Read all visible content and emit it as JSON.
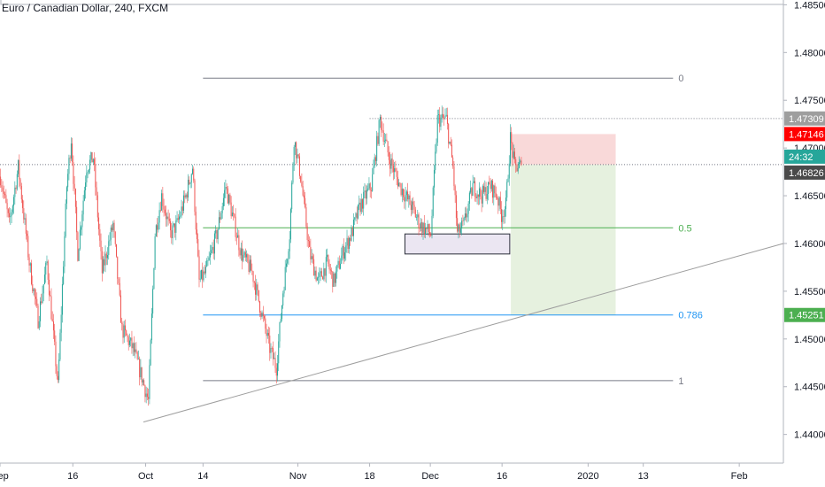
{
  "header": {
    "symbol_title": "Euro / Canadian Dollar, 240, FXCM"
  },
  "colors": {
    "up": "#26a69a",
    "down": "#ef5350",
    "fib_0": "#787b86",
    "fib_05": "#4caf50",
    "fib_0786": "#2196f3",
    "fib_1": "#787b86",
    "trendline": "#9e9e9e",
    "stop_zone": "#f8d0d0",
    "target_zone": "#e3f0dc",
    "tag_gray": "#9e9e9e",
    "tag_red": "#ff0000",
    "tag_teal": "#26a69a",
    "tag_dark": "#4a4a4a",
    "tag_green": "#4caf50"
  },
  "chart_data": {
    "type": "candlestick",
    "ylim": [
      1.437,
      1.4855
    ],
    "y_ticks": [
      "1.48500",
      "1.48000",
      "1.47500",
      "1.47000",
      "1.46500",
      "1.46000",
      "1.45500",
      "1.45000",
      "1.44500",
      "1.44000"
    ],
    "y_tick_values": [
      1.485,
      1.48,
      1.475,
      1.47,
      1.465,
      1.46,
      1.455,
      1.45,
      1.445,
      1.44
    ],
    "x_ticks": [
      "Sep",
      "16",
      "Oct",
      "14",
      "Nov",
      "18",
      "Dec",
      "16",
      "2020",
      "13",
      "Feb"
    ],
    "x_tick_bars": [
      0,
      66,
      132,
      184,
      270,
      335,
      390,
      455,
      533,
      583,
      670
    ],
    "bar_count": 710,
    "price_path": [
      [
        0,
        1.467
      ],
      [
        8,
        1.462
      ],
      [
        16,
        1.468
      ],
      [
        26,
        1.458
      ],
      [
        34,
        1.452
      ],
      [
        42,
        1.458
      ],
      [
        52,
        1.445
      ],
      [
        60,
        1.466
      ],
      [
        64,
        1.471
      ],
      [
        70,
        1.459
      ],
      [
        78,
        1.468
      ],
      [
        84,
        1.469
      ],
      [
        92,
        1.457
      ],
      [
        102,
        1.462
      ],
      [
        110,
        1.451
      ],
      [
        120,
        1.449
      ],
      [
        128,
        1.446
      ],
      [
        134,
        1.4435
      ],
      [
        140,
        1.461
      ],
      [
        146,
        1.465
      ],
      [
        154,
        1.461
      ],
      [
        160,
        1.462
      ],
      [
        168,
        1.465
      ],
      [
        174,
        1.468
      ],
      [
        180,
        1.456
      ],
      [
        186,
        1.457
      ],
      [
        196,
        1.461
      ],
      [
        204,
        1.466
      ],
      [
        210,
        1.463
      ],
      [
        218,
        1.459
      ],
      [
        228,
        1.457
      ],
      [
        236,
        1.453
      ],
      [
        244,
        1.449
      ],
      [
        250,
        1.447
      ],
      [
        256,
        1.455
      ],
      [
        262,
        1.461
      ],
      [
        266,
        1.471
      ],
      [
        272,
        1.467
      ],
      [
        280,
        1.459
      ],
      [
        288,
        1.456
      ],
      [
        296,
        1.458
      ],
      [
        302,
        1.456
      ],
      [
        310,
        1.459
      ],
      [
        318,
        1.461
      ],
      [
        326,
        1.464
      ],
      [
        336,
        1.466
      ],
      [
        344,
        1.473
      ],
      [
        352,
        1.469
      ],
      [
        362,
        1.466
      ],
      [
        372,
        1.464
      ],
      [
        380,
        1.462
      ],
      [
        390,
        1.461
      ],
      [
        396,
        1.473
      ],
      [
        404,
        1.473
      ],
      [
        410,
        1.468
      ],
      [
        414,
        1.461
      ],
      [
        420,
        1.462
      ],
      [
        428,
        1.466
      ],
      [
        436,
        1.465
      ],
      [
        444,
        1.466
      ],
      [
        450,
        1.465
      ],
      [
        454,
        1.463
      ],
      [
        458,
        1.464
      ],
      [
        462,
        1.471
      ],
      [
        466,
        1.468
      ],
      [
        472,
        1.4682
      ]
    ],
    "last_price": 1.46826,
    "fibonacci": {
      "bar_start": 184,
      "bar_end": 610,
      "levels": [
        {
          "label": "0",
          "price": 1.47732
        },
        {
          "label": "0.5",
          "price": 1.46164
        },
        {
          "label": "0.786",
          "price": 1.45251
        },
        {
          "label": "1",
          "price": 1.44564
        }
      ]
    },
    "trendline": {
      "bar_start": 130,
      "price_start": 1.4413,
      "bar_end": 710,
      "price_end": 1.46
    },
    "support_box": {
      "bar_start": 367,
      "bar_end": 462,
      "price_top": 1.461,
      "price_bottom": 1.4589
    },
    "position": {
      "bar_start": 463,
      "bar_end": 558,
      "stop": 1.47146,
      "entry": 1.46826,
      "target": 1.45251
    },
    "horizontal_lines": [
      {
        "price": 1.47309,
        "bar_start": 335,
        "bar_end": 710,
        "style": "dotted"
      },
      {
        "price": 1.46826,
        "bar_start": 0,
        "bar_end": 710,
        "style": "dotted"
      }
    ],
    "price_tags": [
      {
        "text": "1.47309",
        "price": 1.47309,
        "color_key": "tag_gray"
      },
      {
        "text": "1.47146",
        "price": 1.47146,
        "color_key": "tag_red"
      },
      {
        "text": "24:32",
        "price": 1.46826,
        "color_key": "tag_teal",
        "offset": -1
      },
      {
        "text": "1.46826",
        "price": 1.46826,
        "color_key": "tag_dark",
        "offset": 1
      },
      {
        "text": "1.45251",
        "price": 1.45251,
        "color_key": "tag_green"
      }
    ]
  }
}
